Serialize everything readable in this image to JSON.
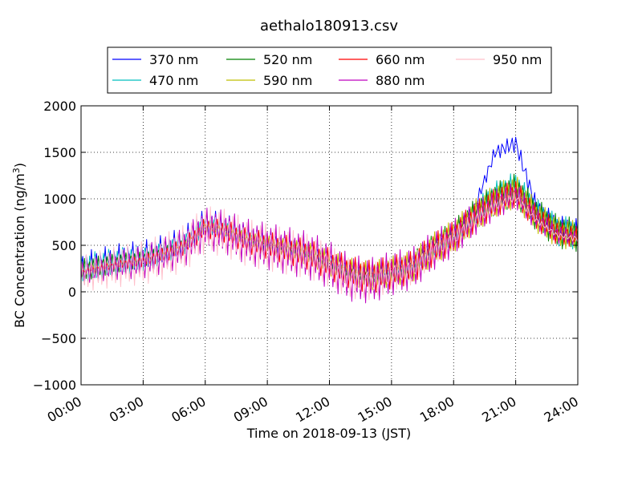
{
  "chart_data": {
    "type": "line",
    "title": "aethalo180913.csv",
    "xlabel": "Time on 2018-09-13 (JST)",
    "ylabel": "BC Concentration (ng/m³)",
    "ylabel_base": "BC Concentration (ng/m",
    "ylabel_sup": "3",
    "ylabel_end": ")",
    "xlim": [
      "00:00",
      "24:00"
    ],
    "ylim": [
      -1000,
      2000
    ],
    "x_ticks": [
      "00:00",
      "03:00",
      "06:00",
      "09:00",
      "12:00",
      "15:00",
      "18:00",
      "21:00",
      "24:00"
    ],
    "y_ticks": [
      "−1000",
      "−500",
      "0",
      "500",
      "1000",
      "1500",
      "2000"
    ],
    "grid": true,
    "legend_position": "top",
    "x": [
      "00:00",
      "01:00",
      "02:00",
      "03:00",
      "04:00",
      "05:00",
      "06:00",
      "07:00",
      "08:00",
      "09:00",
      "10:00",
      "11:00",
      "12:00",
      "13:00",
      "14:00",
      "15:00",
      "16:00",
      "17:00",
      "18:00",
      "19:00",
      "20:00",
      "21:00",
      "22:00",
      "23:00",
      "24:00"
    ],
    "series": [
      {
        "name": "370 nm",
        "color": "#0000ff",
        "values": [
          250,
          300,
          350,
          380,
          450,
          550,
          750,
          700,
          600,
          550,
          500,
          450,
          350,
          250,
          200,
          250,
          300,
          500,
          650,
          900,
          1500,
          1600,
          900,
          700,
          650
        ]
      },
      {
        "name": "470 nm",
        "color": "#00bfbf",
        "values": [
          240,
          290,
          330,
          360,
          430,
          520,
          720,
          680,
          580,
          530,
          480,
          430,
          330,
          240,
          190,
          240,
          290,
          480,
          620,
          850,
          1050,
          1150,
          850,
          660,
          620
        ]
      },
      {
        "name": "520 nm",
        "color": "#008000",
        "values": [
          230,
          280,
          320,
          350,
          420,
          510,
          710,
          670,
          570,
          520,
          470,
          420,
          320,
          230,
          180,
          230,
          280,
          470,
          610,
          830,
          1000,
          1100,
          830,
          650,
          610
        ]
      },
      {
        "name": "590 nm",
        "color": "#bfbf00",
        "values": [
          220,
          270,
          310,
          340,
          410,
          500,
          700,
          660,
          560,
          510,
          460,
          410,
          310,
          220,
          170,
          220,
          270,
          460,
          600,
          810,
          980,
          1080,
          810,
          640,
          600
        ]
      },
      {
        "name": "660 nm",
        "color": "#ff0000",
        "values": [
          210,
          260,
          300,
          330,
          400,
          490,
          690,
          650,
          550,
          500,
          450,
          400,
          300,
          210,
          160,
          210,
          260,
          450,
          590,
          800,
          960,
          1060,
          800,
          630,
          590
        ]
      },
      {
        "name": "880 nm",
        "color": "#bf00bf",
        "values": [
          200,
          250,
          290,
          320,
          390,
          480,
          680,
          640,
          540,
          490,
          440,
          390,
          290,
          150,
          120,
          200,
          250,
          440,
          580,
          780,
          940,
          1040,
          780,
          620,
          580
        ]
      },
      {
        "name": "950 nm",
        "color": "#ffc0cb",
        "values": [
          190,
          240,
          280,
          310,
          380,
          470,
          670,
          630,
          530,
          480,
          430,
          380,
          280,
          140,
          110,
          190,
          240,
          430,
          570,
          770,
          920,
          1020,
          770,
          610,
          570
        ]
      }
    ]
  }
}
